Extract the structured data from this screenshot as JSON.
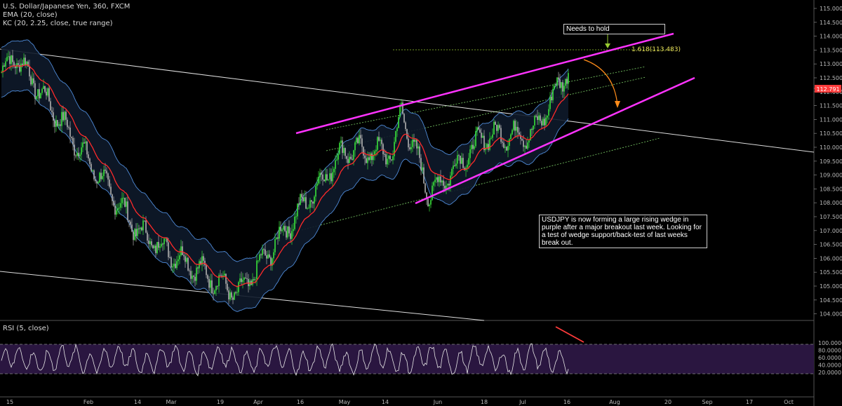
{
  "legend": {
    "symbol": "U.S. Dollar/Japanese Yen, 360, FXCM",
    "ema": "EMA (20, close)",
    "kc": "KC (20, 2.25, close, true range)",
    "rsi": "RSI (5, close)"
  },
  "annotations": {
    "needs_to_hold": "Needs to hold",
    "fib": "1.618(113.483)",
    "analysis": "USDJPY is now forming a large rising wedge in purple after a major breakout last week. Looking for a test of wedge support/back-test of last weeks break out."
  },
  "current_price": "112.791",
  "colors": {
    "background": "#000000",
    "wedge": "#ff33ff",
    "ema": "#ff2a2a",
    "channel": "#4f8bd8",
    "up_candle": "#39e33a",
    "down_candle": "#b0b0b0",
    "rsi_band": "#2a1640",
    "fib_line": "#9acd32",
    "arrow": "#ff8c1a"
  },
  "chart_data": {
    "type": "line",
    "instrument": "U.S. Dollar/Japanese Yen",
    "timeframe": "360",
    "y_ticks": [
      "115.000",
      "114.500",
      "114.000",
      "113.500",
      "113.000",
      "112.500",
      "112.000",
      "111.500",
      "111.000",
      "110.500",
      "110.000",
      "109.500",
      "109.000",
      "108.500",
      "108.000",
      "107.500",
      "107.000",
      "106.500",
      "106.000",
      "105.500",
      "105.000",
      "104.500",
      "104.000"
    ],
    "ylim": [
      103.9,
      115.2
    ],
    "x_ticks": [
      "15",
      "Feb",
      "14",
      "Mar",
      "19",
      "Apr",
      "16",
      "May",
      "14",
      "Jun",
      "18",
      "Jul",
      "16",
      "Aug",
      "20",
      "Sep",
      "17",
      "Oct"
    ],
    "price_path": {
      "x": [
        "15",
        "Feb",
        "14",
        "Mar",
        "19",
        "Apr",
        "16",
        "May",
        "14",
        "Jun",
        "18",
        "Jul",
        "16"
      ],
      "close": [
        112.6,
        109.5,
        107.3,
        106.1,
        105.0,
        106.7,
        109.9,
        109.7,
        110.9,
        109.4,
        110.4,
        110.5,
        112.8
      ]
    },
    "ema_last": 112.3,
    "fib_level": 113.483,
    "rsi": {
      "name": "RSI (5, close)",
      "y_ticks": [
        "100.0000",
        "80.0000",
        "60.0000",
        "40.0000",
        "20.0000"
      ],
      "ylim": [
        0,
        100
      ],
      "band": [
        30,
        70
      ]
    },
    "grid": false
  }
}
